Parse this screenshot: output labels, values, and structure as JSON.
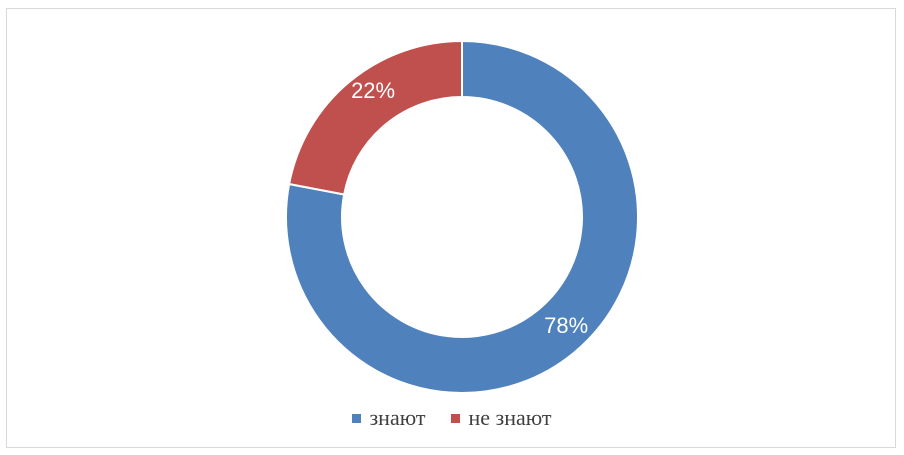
{
  "chart_data": {
    "type": "pie",
    "donut": true,
    "categories": [
      "знают",
      "не знают"
    ],
    "values": [
      78,
      22
    ],
    "labels": [
      "78%",
      "22%"
    ],
    "colors": [
      "#4f81bd",
      "#c0504d"
    ],
    "legend_position": "bottom",
    "title": ""
  }
}
